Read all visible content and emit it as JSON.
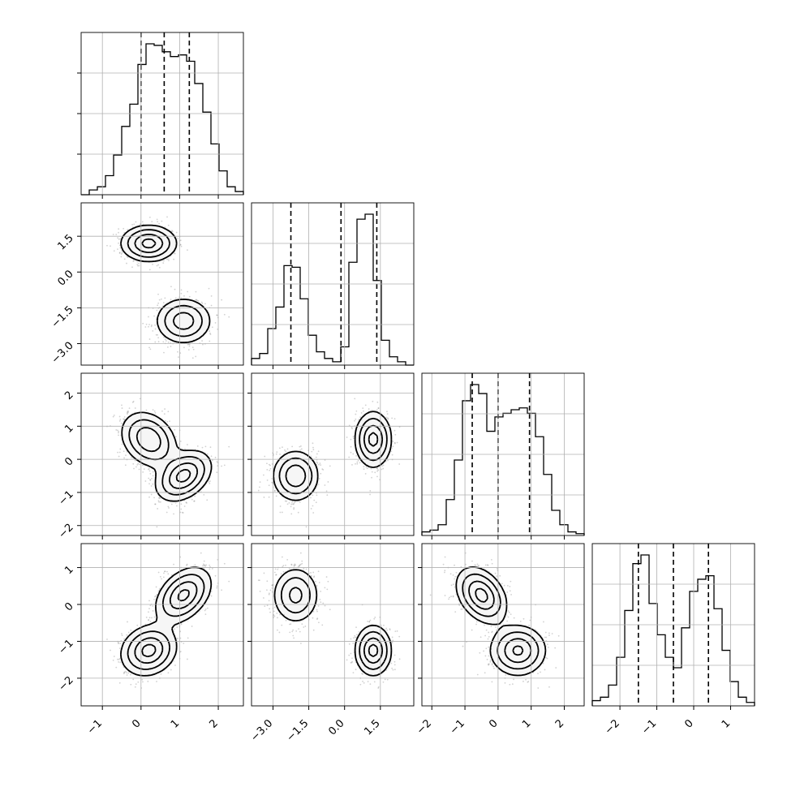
{
  "figure": {
    "title": ""
  },
  "chart_data": {
    "type": "corner",
    "n_params": 4,
    "params": [
      {
        "label": "",
        "range": [
          -1.55,
          2.65
        ],
        "ticks": [
          -1,
          0,
          1,
          2
        ],
        "tick_labels": [
          "−1",
          "0",
          "1",
          "2"
        ],
        "quantiles": [
          0.0,
          0.6,
          1.25
        ]
      },
      {
        "label": "",
        "range": [
          -3.9,
          2.9
        ],
        "ticks": [
          -3.0,
          -1.5,
          0.0,
          1.5
        ],
        "tick_labels": [
          "−3.0",
          "−1.5",
          "0.0",
          "1.5"
        ],
        "quantiles": [
          -2.25,
          -0.15,
          1.35
        ]
      },
      {
        "label": "",
        "range": [
          -2.3,
          2.6
        ],
        "ticks": [
          -2,
          -1,
          0,
          1,
          2
        ],
        "tick_labels": [
          "−2",
          "−1",
          "0",
          "1",
          "2"
        ],
        "quantiles": [
          -0.78,
          0.0,
          0.95
        ]
      },
      {
        "label": "",
        "range": [
          -2.75,
          1.65
        ],
        "ticks": [
          -2,
          -1,
          0,
          1
        ],
        "tick_labels": [
          "−2",
          "−1",
          "0",
          "1"
        ],
        "quantiles": [
          -1.5,
          -0.55,
          0.4
        ]
      }
    ],
    "histograms": [
      {
        "param": 0,
        "bins_left": -1.55,
        "bin_width": 0.21,
        "counts": [
          0,
          0.03,
          0.05,
          0.12,
          0.25,
          0.43,
          0.57,
          0.82,
          0.95,
          0.94,
          0.9,
          0.87,
          0.88,
          0.84,
          0.7,
          0.52,
          0.32,
          0.15,
          0.05,
          0.02
        ]
      },
      {
        "param": 1,
        "bins_left": -3.9,
        "bin_width": 0.34,
        "counts": [
          0.04,
          0.07,
          0.22,
          0.35,
          0.6,
          0.59,
          0.4,
          0.18,
          0.08,
          0.04,
          0.02,
          0.11,
          0.62,
          0.88,
          0.91,
          0.51,
          0.15,
          0.05,
          0.02,
          0.0
        ]
      },
      {
        "param": 2,
        "bins_left": -2.3,
        "bin_width": 0.245,
        "counts": [
          0.02,
          0.03,
          0.06,
          0.2,
          0.42,
          0.75,
          0.84,
          0.79,
          0.58,
          0.66,
          0.68,
          0.7,
          0.71,
          0.68,
          0.55,
          0.34,
          0.14,
          0.06,
          0.02,
          0.01
        ]
      },
      {
        "param": 3,
        "bins_left": -2.75,
        "bin_width": 0.22,
        "counts": [
          0.03,
          0.05,
          0.12,
          0.28,
          0.55,
          0.82,
          0.87,
          0.59,
          0.41,
          0.28,
          0.22,
          0.45,
          0.66,
          0.73,
          0.75,
          0.56,
          0.32,
          0.14,
          0.05,
          0.02
        ]
      }
    ],
    "components": [
      {
        "mean": [
          0.2,
          1.2,
          0.6,
          -1.25
        ],
        "sd": [
          0.36,
          0.38,
          0.42,
          0.34
        ],
        "corr": [
          [
            0,
            2,
            -0.25
          ],
          [
            0,
            3,
            0.15
          ]
        ]
      },
      {
        "mean": [
          1.1,
          -2.05,
          -0.5,
          0.25
        ],
        "sd": [
          0.36,
          0.48,
          0.38,
          0.38
        ],
        "corr": [
          [
            0,
            2,
            0.35
          ],
          [
            0,
            3,
            0.4
          ],
          [
            2,
            3,
            -0.35
          ]
        ]
      }
    ],
    "contour_levels_sigma": [
      0.5,
      1.0,
      1.5,
      2.0
    ],
    "grid": true
  }
}
